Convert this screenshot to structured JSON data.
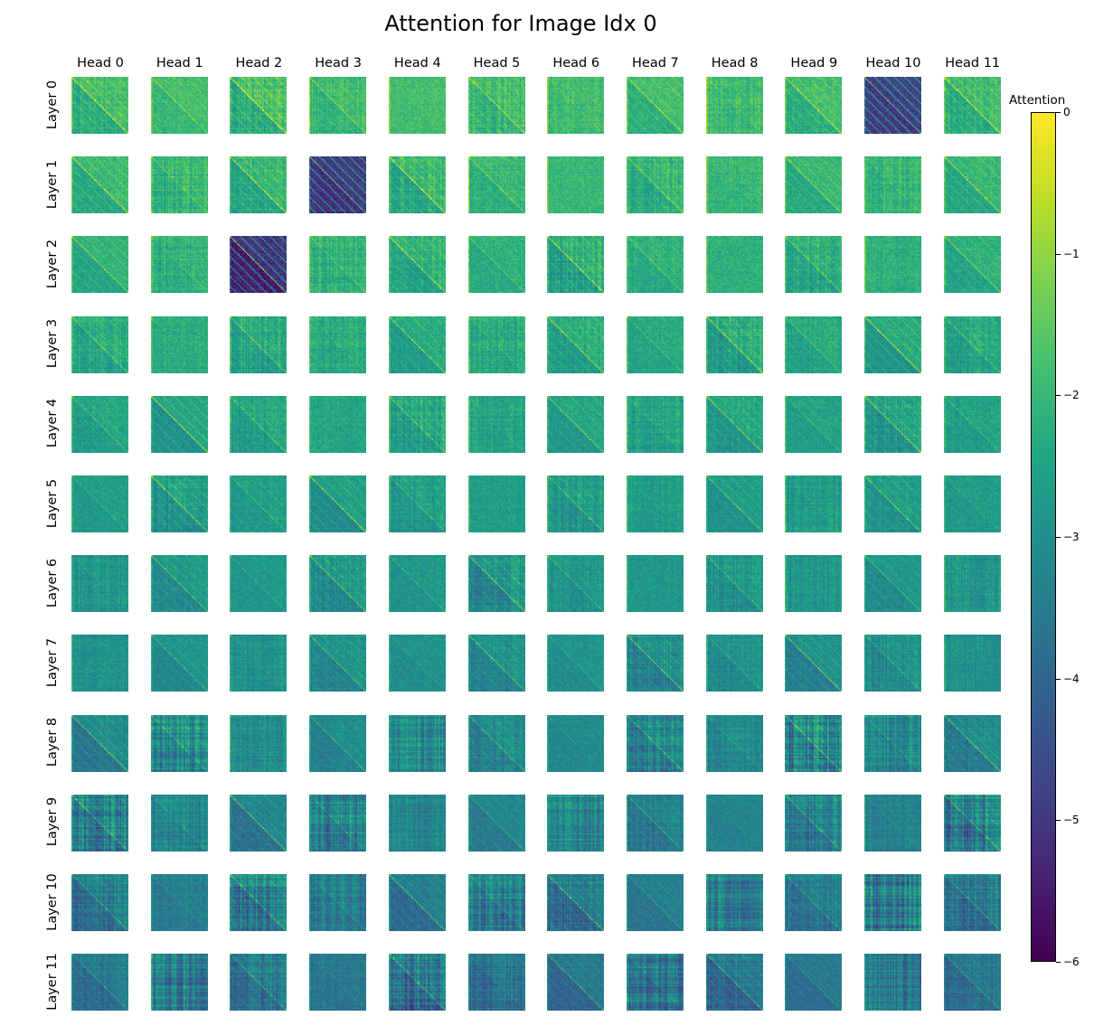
{
  "chart_data": {
    "type": "heatmap",
    "title": "Attention for Image Idx 0",
    "column_labels": [
      "Head 0",
      "Head 1",
      "Head 2",
      "Head 3",
      "Head 4",
      "Head 5",
      "Head 6",
      "Head 7",
      "Head 8",
      "Head 9",
      "Head 10",
      "Head 11"
    ],
    "row_labels": [
      "Layer 0",
      "Layer 1",
      "Layer 2",
      "Layer 3",
      "Layer 4",
      "Layer 5",
      "Layer 6",
      "Layer 7",
      "Layer 8",
      "Layer 9",
      "Layer 10",
      "Layer 11"
    ],
    "colormap": "viridis",
    "colorbar": {
      "label": "Attention",
      "range": [
        -6,
        0
      ],
      "ticks": [
        0,
        -1,
        -2,
        -3,
        -4,
        -5,
        -6
      ],
      "tick_labels": [
        "0",
        "−1",
        "−2",
        "−3",
        "−4",
        "−5",
        "−6"
      ]
    }
  }
}
